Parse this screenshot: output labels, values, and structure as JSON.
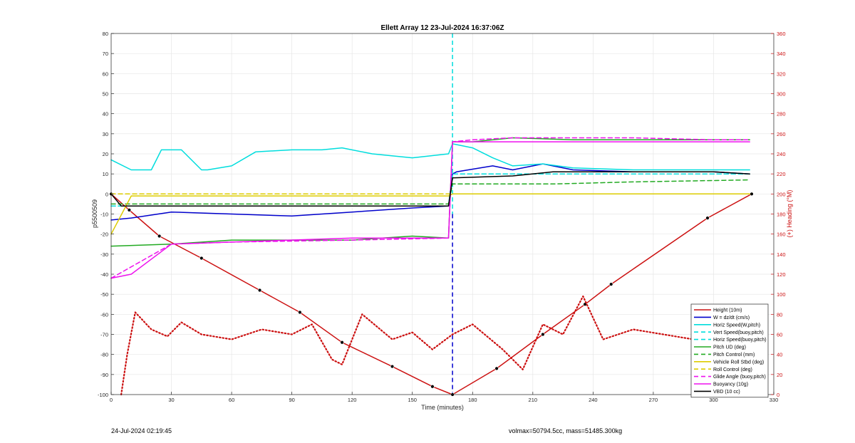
{
  "chart_data": {
    "type": "line",
    "title": "Ellett Array 12 23-Jul-2024 16:37:06Z",
    "xlabel": "Time (minutes)",
    "ylabel": "p5500509",
    "y2label": "(+) Heading (°M)",
    "xlim": [
      0,
      330
    ],
    "ylim": [
      -100,
      80
    ],
    "y2lim": [
      0,
      360
    ],
    "xticks": [
      0,
      30,
      60,
      90,
      120,
      150,
      180,
      210,
      240,
      270,
      300,
      330
    ],
    "yticks": [
      -100,
      -90,
      -80,
      -70,
      -60,
      -50,
      -40,
      -30,
      -20,
      -10,
      0,
      10,
      20,
      30,
      40,
      50,
      60,
      70,
      80
    ],
    "y2ticks": [
      0,
      20,
      40,
      60,
      80,
      100,
      120,
      140,
      160,
      180,
      200,
      220,
      240,
      260,
      280,
      300,
      320,
      340,
      360
    ],
    "grid": true,
    "legend_position": "bottom-right",
    "vlines": [
      {
        "x": 170,
        "color": "#00dddd"
      },
      {
        "x": 170,
        "color": "#0000cc"
      }
    ],
    "series": [
      {
        "name": "Height (10m)",
        "color": "#cc1111",
        "style": "solid",
        "axis": "left",
        "x": [
          0,
          9,
          24,
          45,
          74,
          94,
          115,
          140,
          160,
          170,
          192,
          215,
          236,
          249,
          297,
          319
        ],
        "y": [
          0,
          -8,
          -21,
          -32,
          -48,
          -59,
          -74,
          -86,
          -96,
          -100,
          -87,
          -70,
          -55,
          -45,
          -12,
          0
        ]
      },
      {
        "name": "W = dz/dt (cm/s)",
        "color": "#0000cc",
        "style": "solid",
        "axis": "left",
        "x": [
          0,
          10,
          30,
          60,
          90,
          120,
          150,
          168,
          170,
          172,
          190,
          200,
          215,
          230,
          260,
          300,
          318
        ],
        "y": [
          -13,
          -12,
          -9,
          -10,
          -11,
          -9,
          -7,
          -6,
          10,
          11,
          14,
          12,
          15,
          12,
          11,
          11,
          10
        ]
      },
      {
        "name": "Horiz Speed(W,pitch)",
        "color": "#00dddd",
        "style": "solid",
        "axis": "left",
        "x": [
          0,
          10,
          20,
          25,
          35,
          45,
          48,
          60,
          72,
          90,
          105,
          115,
          130,
          150,
          168,
          170,
          180,
          190,
          200,
          215,
          230,
          260,
          300,
          318
        ],
        "y": [
          17,
          12,
          12,
          22,
          22,
          12,
          12,
          14,
          21,
          22,
          22,
          23,
          20,
          18,
          20,
          25,
          23,
          18,
          14,
          15,
          13,
          12,
          12,
          12
        ]
      },
      {
        "name": "Vert Speed(buoy,pitch)",
        "color": "#00dddd",
        "style": "dashed",
        "axis": "left",
        "x": [
          0,
          168,
          170,
          318
        ],
        "y": [
          -6,
          -6,
          10,
          10
        ]
      },
      {
        "name": "Horiz Speed(buoy,pitch)",
        "color": "#00dddd",
        "style": "dashed",
        "axis": "left",
        "x": [
          0,
          168,
          170,
          318
        ],
        "y": [
          -6,
          -6,
          10,
          10
        ]
      },
      {
        "name": "Pitch UD (deg)",
        "color": "#22aa22",
        "style": "solid",
        "axis": "left",
        "x": [
          0,
          30,
          60,
          90,
          120,
          150,
          168,
          170,
          180,
          200,
          230,
          260,
          300,
          318
        ],
        "y": [
          -26,
          -25,
          -23,
          -23,
          -23,
          -21,
          -22,
          26,
          26,
          28,
          27,
          27,
          27,
          27
        ]
      },
      {
        "name": "Pitch Control (mm)",
        "color": "#22aa22",
        "style": "dashed",
        "axis": "left",
        "x": [
          0,
          168,
          170,
          220,
          260,
          318
        ],
        "y": [
          -5,
          -5,
          5,
          5,
          6,
          7
        ]
      },
      {
        "name": "Vehicle Roll Stbd (deg)",
        "color": "#ddcc00",
        "style": "solid",
        "axis": "left",
        "x": [
          0,
          10,
          60,
          120,
          168,
          170,
          220,
          318
        ],
        "y": [
          -20,
          -1,
          -1,
          -1,
          -1,
          0,
          0,
          0
        ]
      },
      {
        "name": "Roll Control (deg)",
        "color": "#ddcc00",
        "style": "dashed",
        "axis": "left",
        "x": [
          0,
          168,
          170,
          318
        ],
        "y": [
          0,
          0,
          0,
          0
        ]
      },
      {
        "name": "Glide Angle (buoy,pitch)",
        "color": "#ee11ee",
        "style": "dashed",
        "axis": "left",
        "x": [
          0,
          30,
          60,
          120,
          168,
          170,
          180,
          200,
          230,
          260,
          300,
          318
        ],
        "y": [
          -42,
          -25,
          -24,
          -23,
          -22,
          26,
          27,
          28,
          28,
          28,
          27,
          27
        ]
      },
      {
        "name": "Buoyancy (10g)",
        "color": "#ee11ee",
        "style": "solid",
        "axis": "left",
        "x": [
          0,
          10,
          30,
          60,
          120,
          168,
          170,
          318
        ],
        "y": [
          -42,
          -40,
          -25,
          -24,
          -22,
          -22,
          26,
          26
        ]
      },
      {
        "name": "VBD (10 cc)",
        "color": "#000000",
        "style": "solid",
        "axis": "left",
        "x": [
          0,
          5,
          60,
          120,
          168,
          170,
          200,
          220,
          260,
          300,
          318
        ],
        "y": [
          0,
          -6,
          -6,
          -6,
          -6,
          8,
          9,
          11,
          11,
          11,
          10
        ]
      },
      {
        "name": "Heading",
        "color": "#cc1111",
        "style": "dotted",
        "axis": "right",
        "x": [
          5,
          8,
          12,
          20,
          28,
          35,
          45,
          60,
          75,
          90,
          100,
          110,
          115,
          125,
          140,
          150,
          160,
          170,
          180,
          195,
          205,
          215,
          225,
          235,
          245,
          260,
          275,
          290,
          300,
          310,
          318
        ],
        "y": [
          0,
          40,
          82,
          65,
          58,
          72,
          60,
          55,
          65,
          60,
          70,
          35,
          30,
          80,
          55,
          62,
          45,
          60,
          70,
          45,
          25,
          70,
          60,
          98,
          55,
          65,
          60,
          55,
          60,
          65,
          60
        ]
      }
    ]
  },
  "footer": {
    "left_text": "24-Jul-2024 02:19:45",
    "right_text": "volmax=50794.5cc, mass=51485.300kg"
  }
}
